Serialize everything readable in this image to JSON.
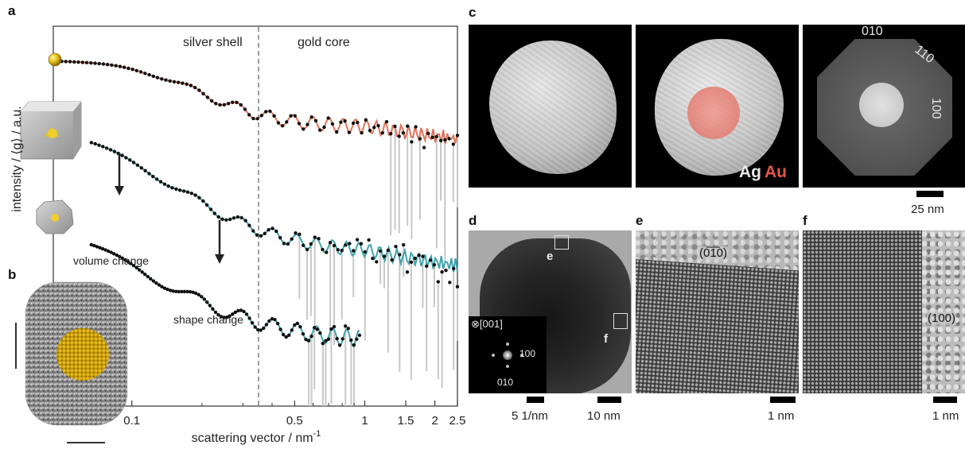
{
  "panel_labels": {
    "a": "a",
    "b": "b",
    "c": "c",
    "d": "d",
    "e": "e",
    "f": "f"
  },
  "chart_data": {
    "type": "scatter",
    "xlabel": "scattering vector / nm",
    "xlabel_sup": "-1",
    "ylabel": "intensity / ⟨g⟩ / a.u.",
    "xscale": "log",
    "xlim": [
      0.046,
      2.5
    ],
    "xticks": [
      {
        "v": 0.1,
        "label": "0.1"
      },
      {
        "v": 0.5,
        "label": "0.5"
      },
      {
        "v": 1,
        "label": "1"
      },
      {
        "v": 1.5,
        "label": "1.5"
      },
      {
        "v": 2,
        "label": "2"
      },
      {
        "v": 2.5,
        "label": "2.5"
      }
    ],
    "divider_x": 0.35,
    "region_labels": [
      "silver shell",
      "gold core"
    ],
    "annotations": [
      "volume change",
      "shape change"
    ],
    "series": [
      {
        "fit_color": "#e0735a",
        "q_max": 2.5
      },
      {
        "fit_color": "#3fa3ad",
        "q_max": 2.5
      },
      {
        "fit_color": "#3fa3ad",
        "q_max": 0.95
      }
    ]
  },
  "panel_c": {
    "inset_ag": "Ag",
    "inset_au": "Au",
    "facets": [
      "010",
      "110",
      "100"
    ],
    "scalebar": "25 nm"
  },
  "panel_d": {
    "zone_axis": "⊗[001]",
    "fft_labels": [
      "100",
      "010"
    ],
    "box_labels": [
      "e",
      "f"
    ],
    "scalebar_left": "5 1/nm",
    "scalebar_right": "10 nm"
  },
  "panel_e": {
    "facet": "(0̅1̅0)",
    "scalebar": "1 nm"
  },
  "panel_f": {
    "facet": "(100)",
    "scalebar": "1 nm"
  },
  "colors": {
    "gold": "#e8c21a",
    "fit_orange": "#e0735a",
    "fit_teal": "#3fa3ad",
    "au_red": "#e8564a"
  }
}
